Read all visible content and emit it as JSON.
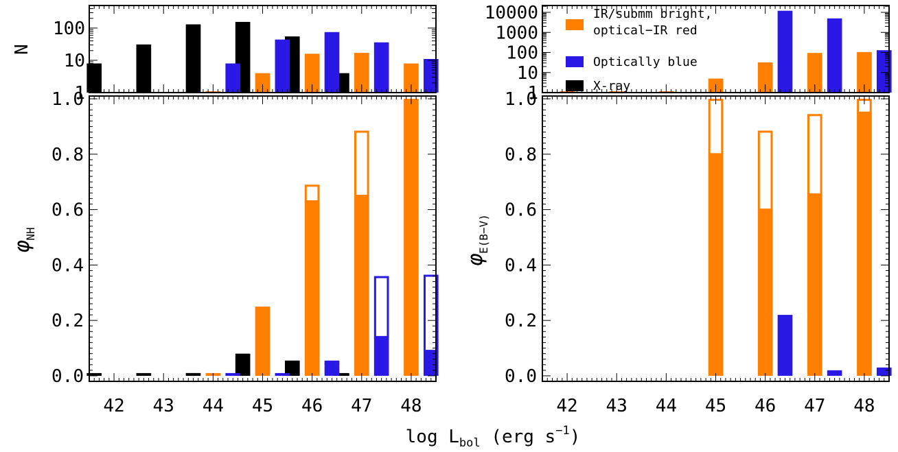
{
  "colors": {
    "orange": "#ff7f00",
    "blue": "#2a18e6",
    "black": "#000000"
  },
  "xlabel": {
    "main": "log L",
    "sub": "bol",
    "unit_open": " (erg s",
    "sup": "−1",
    "unit_close": ")"
  },
  "legend": [
    {
      "label": "IR/submm bright,",
      "label2": "optical−IR red",
      "color": "orange"
    },
    {
      "label": "Optically blue",
      "label2": "",
      "color": "blue"
    },
    {
      "label": "X-ray",
      "label2": "",
      "color": "black"
    }
  ],
  "chart_data": [
    {
      "id": "left-top",
      "type": "bar",
      "ylabel": "N",
      "yscale": "log",
      "ylim": [
        1,
        500
      ],
      "yticks": [
        {
          "v": 1,
          "t": "1"
        },
        {
          "v": 10,
          "t": "10"
        },
        {
          "v": 100,
          "t": "100"
        }
      ],
      "xlim": [
        41.5,
        48.5
      ],
      "xticks": [
        "42",
        "43",
        "44",
        "45",
        "46",
        "47",
        "48"
      ],
      "series": [
        {
          "color": "black",
          "x": [
            41.6,
            42.6,
            43.6,
            44.6,
            45.6,
            46.6
          ],
          "values": [
            8,
            31,
            130,
            155,
            55,
            4
          ]
        },
        {
          "color": "orange",
          "x": [
            44.0,
            45.0,
            46.0,
            47.0,
            48.0
          ],
          "values": [
            1,
            4,
            16,
            17,
            8
          ]
        },
        {
          "color": "blue",
          "x": [
            44.4,
            45.4,
            46.4,
            47.4,
            48.4
          ],
          "values": [
            8,
            44,
            75,
            36,
            11
          ]
        }
      ]
    },
    {
      "id": "left-bottom",
      "type": "bar",
      "ylabel": "φ",
      "ylabel_sub": "NH",
      "ylim": [
        -0.02,
        1.01
      ],
      "yticks": [
        "0.0",
        "0.2",
        "0.4",
        "0.6",
        "0.8",
        "1.0"
      ],
      "xlim": [
        41.5,
        48.5
      ],
      "xticks": [
        "42",
        "43",
        "44",
        "45",
        "46",
        "47",
        "48"
      ],
      "series": [
        {
          "color": "black",
          "x": [
            41.6,
            42.6,
            43.6,
            44.6,
            45.6,
            46.6
          ],
          "values": [
            0.0,
            0.0,
            0.01,
            0.08,
            0.055,
            0.0
          ]
        },
        {
          "color": "orange",
          "x": [
            44.0,
            45.0,
            46.0,
            47.0,
            48.0
          ],
          "values": [
            0.0,
            0.25,
            0.63,
            0.65,
            1.0
          ],
          "upper": [
            null,
            null,
            0.69,
            0.885,
            1.0
          ]
        },
        {
          "color": "blue",
          "x": [
            44.4,
            45.4,
            46.4,
            47.4,
            48.4
          ],
          "values": [
            0.0,
            0.0,
            0.045,
            0.14,
            0.09
          ],
          "upper": [
            null,
            null,
            0.055,
            0.36,
            0.365
          ]
        }
      ]
    },
    {
      "id": "right-top",
      "type": "bar",
      "ylabel": "",
      "yscale": "log",
      "ylim": [
        1,
        22000
      ],
      "yticks": [
        {
          "v": 1,
          "t": "1"
        },
        {
          "v": 10,
          "t": "10"
        },
        {
          "v": 100,
          "t": "100"
        },
        {
          "v": 1000,
          "t": "1000"
        },
        {
          "v": 10000,
          "t": "10000"
        }
      ],
      "xlim": [
        41.5,
        48.5
      ],
      "xticks": [
        "42",
        "43",
        "44",
        "45",
        "46",
        "47",
        "48"
      ],
      "series": [
        {
          "color": "orange",
          "x": [
            42.0,
            43.0,
            44.0,
            45.0,
            46.0,
            47.0,
            48.0
          ],
          "values": [
            1,
            1,
            1,
            5,
            32,
            95,
            105
          ]
        },
        {
          "color": "blue",
          "x": [
            46.4,
            47.4,
            48.4
          ],
          "values": [
            12000,
            5000,
            130
          ]
        }
      ]
    },
    {
      "id": "right-bottom",
      "type": "bar",
      "ylabel": "φ",
      "ylabel_sub": "E(B−V)",
      "ylim": [
        -0.02,
        1.01
      ],
      "yticks": [
        "0.0",
        "0.2",
        "0.4",
        "0.6",
        "0.8",
        "1.0"
      ],
      "xlim": [
        41.5,
        48.5
      ],
      "xticks": [
        "42",
        "43",
        "44",
        "45",
        "46",
        "47",
        "48"
      ],
      "series": [
        {
          "color": "orange",
          "x": [
            45.0,
            46.0,
            47.0,
            48.0
          ],
          "values": [
            0.8,
            0.6,
            0.655,
            0.95
          ],
          "upper": [
            1.0,
            0.885,
            0.945,
            1.0
          ]
        },
        {
          "color": "blue",
          "x": [
            46.4,
            47.4,
            48.4
          ],
          "values": [
            0.22,
            0.02,
            0.03
          ]
        }
      ]
    }
  ]
}
